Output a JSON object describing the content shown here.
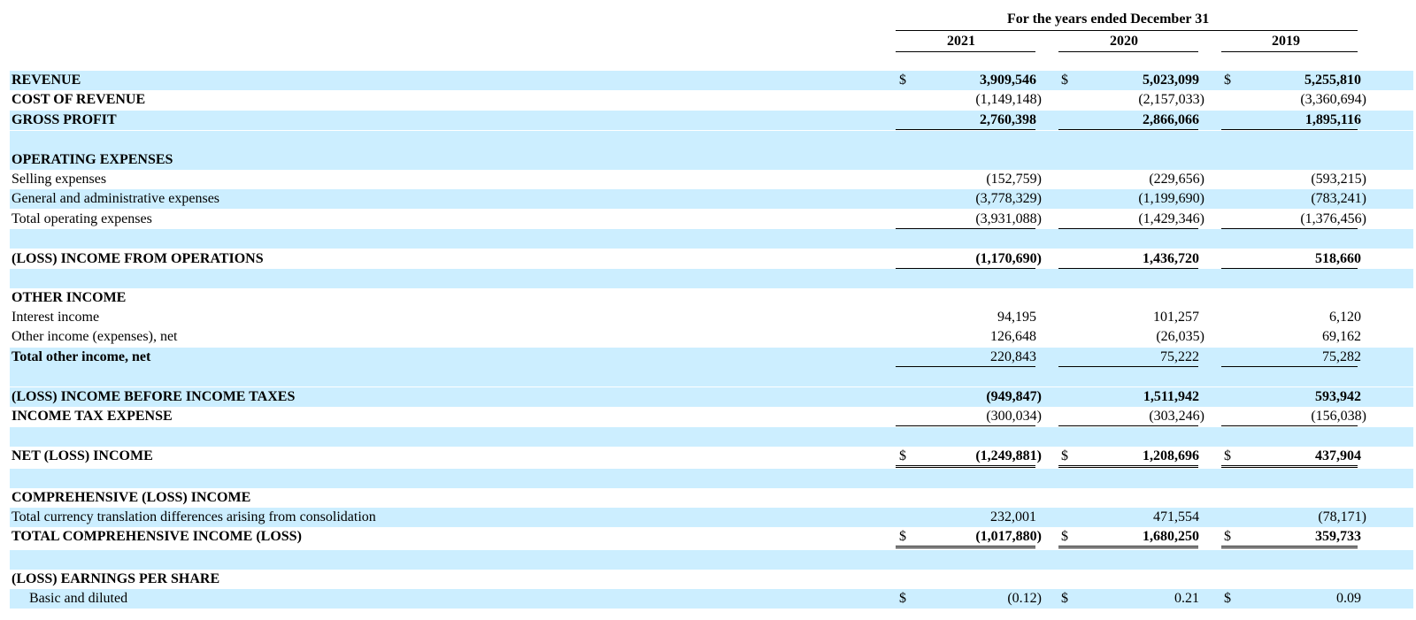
{
  "header": {
    "period_caption": "For the years ended December 31",
    "years": [
      "2021",
      "2020",
      "2019"
    ]
  },
  "rows": [
    {
      "label": "REVENUE",
      "bold": true,
      "dollar": true,
      "values": [
        "3,909,546",
        "5,023,099",
        "5,255,810"
      ]
    },
    {
      "label": "COST OF REVENUE",
      "bold": true,
      "values": [
        "(1,149,148)",
        "(2,157,033)",
        "(3,360,694)"
      ]
    },
    {
      "label": "GROSS PROFIT",
      "bold": true,
      "values": [
        "2,760,398",
        "2,866,066",
        "1,895,116"
      ]
    },
    {
      "label": "OPERATING EXPENSES",
      "bold": true,
      "values": [
        "",
        "",
        ""
      ]
    },
    {
      "label": "Selling expenses",
      "values": [
        "(152,759)",
        "(229,656)",
        "(593,215)"
      ]
    },
    {
      "label": "General and administrative expenses",
      "values": [
        "(3,778,329)",
        "(1,199,690)",
        "(783,241)"
      ]
    },
    {
      "label": "Total operating expenses",
      "values": [
        "(3,931,088)",
        "(1,429,346)",
        "(1,376,456)"
      ]
    },
    {
      "label": "(LOSS) INCOME FROM OPERATIONS",
      "bold": true,
      "values": [
        "(1,170,690)",
        "1,436,720",
        "518,660"
      ]
    },
    {
      "label": "OTHER INCOME",
      "bold": true,
      "values": [
        "",
        "",
        ""
      ]
    },
    {
      "label": "Interest income",
      "values": [
        "94,195",
        "101,257",
        "6,120"
      ]
    },
    {
      "label": "Other income (expenses), net",
      "values": [
        "126,648",
        "(26,035)",
        "69,162"
      ]
    },
    {
      "label": "Total other income, net",
      "bold": true,
      "values": [
        "220,843",
        "75,222",
        "75,282"
      ]
    },
    {
      "label": "(LOSS) INCOME BEFORE INCOME TAXES",
      "bold": true,
      "values": [
        "(949,847)",
        "1,511,942",
        "593,942"
      ]
    },
    {
      "label": "INCOME TAX EXPENSE",
      "bold": true,
      "values": [
        "(300,034)",
        "(303,246)",
        "(156,038)"
      ]
    },
    {
      "label": "NET (LOSS) INCOME",
      "bold": true,
      "dollar": true,
      "values": [
        "(1,249,881)",
        "1,208,696",
        "437,904"
      ]
    },
    {
      "label": "COMPREHENSIVE (LOSS) INCOME",
      "bold": true,
      "values": [
        "",
        "",
        ""
      ]
    },
    {
      "label": "Total currency translation differences arising from consolidation",
      "values": [
        "232,001",
        "471,554",
        "(78,171)"
      ]
    },
    {
      "label": "TOTAL COMPREHENSIVE INCOME (LOSS)",
      "bold": true,
      "dollar": true,
      "values": [
        "(1,017,880)",
        "1,680,250",
        "359,733"
      ]
    },
    {
      "label": "(LOSS) EARNINGS PER SHARE",
      "bold": true,
      "values": [
        "",
        "",
        ""
      ]
    },
    {
      "label": "Basic and diluted",
      "dollar": true,
      "values": [
        "(0.12)",
        "0.21",
        "0.09"
      ]
    }
  ],
  "currency_symbol": "$",
  "colors": {
    "row_shade": "#cceeff"
  }
}
